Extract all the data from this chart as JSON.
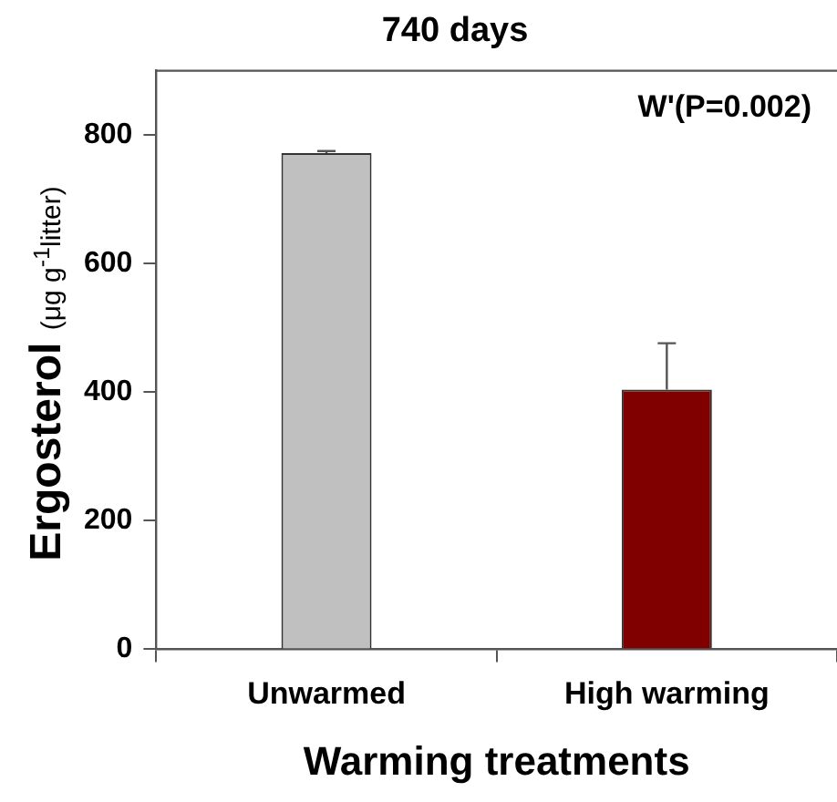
{
  "chart_data": {
    "type": "bar",
    "title": "740 days",
    "xlabel": "Warming treatments",
    "ylabel": "Ergosterol (μg g$^{-1}$litter)",
    "categories": [
      "Unwarmed",
      "High warming"
    ],
    "values": [
      772,
      404
    ],
    "colors": [
      "#c0c0c0",
      "#800000"
    ],
    "errors": [
      [
        772,
        775
      ],
      [
        404,
        476
      ]
    ],
    "ylim": [
      0,
      900
    ],
    "yticks": [
      0,
      200,
      400,
      600,
      800
    ],
    "grid": false,
    "legend": false,
    "annotations": [
      "W'(P=0.002)"
    ]
  }
}
